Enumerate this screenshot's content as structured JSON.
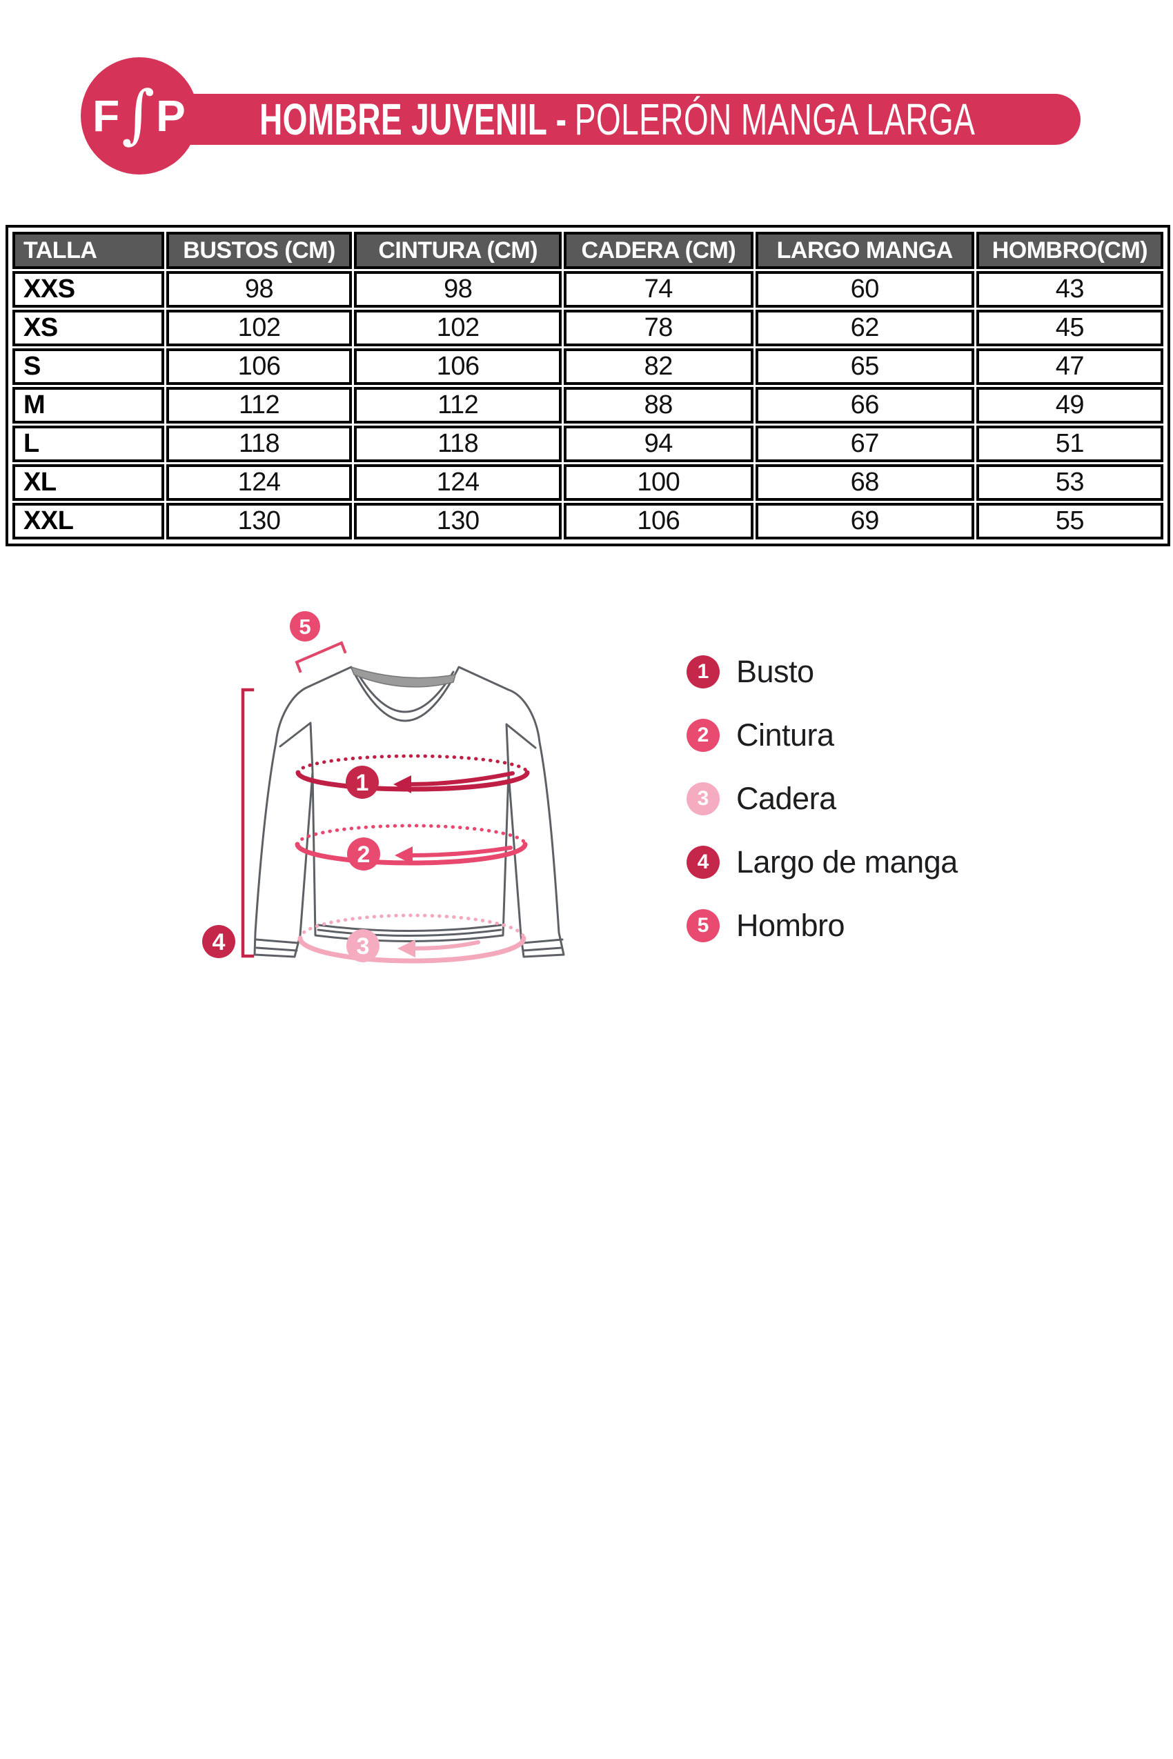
{
  "header": {
    "logo_parts": [
      "F",
      "∫",
      "P"
    ],
    "title_bold": "HOMBRE JUVENIL -",
    "title_regular": "POLERÓN MANGA LARGA",
    "brand_color": "#d63358"
  },
  "size_table": {
    "columns": [
      "TALLA",
      "BUSTOS (CM)",
      "CINTURA (CM)",
      "CADERA (CM)",
      "LARGO MANGA",
      "HOMBRO(CM)"
    ],
    "rows": [
      [
        "XXS",
        "98",
        "98",
        "74",
        "60",
        "43"
      ],
      [
        "XS",
        "102",
        "102",
        "78",
        "62",
        "45"
      ],
      [
        "S",
        "106",
        "106",
        "82",
        "65",
        "47"
      ],
      [
        "M",
        "112",
        "112",
        "88",
        "66",
        "49"
      ],
      [
        "L",
        "118",
        "118",
        "94",
        "67",
        "51"
      ],
      [
        "XL",
        "124",
        "124",
        "100",
        "68",
        "53"
      ],
      [
        "XXL",
        "130",
        "130",
        "106",
        "69",
        "55"
      ]
    ],
    "header_bg": "#595959",
    "header_text_color": "#ffffff"
  },
  "diagram": {
    "badges": [
      {
        "number": "1",
        "color": "#c5274a"
      },
      {
        "number": "2",
        "color": "#e84a70"
      },
      {
        "number": "3",
        "color": "#f5abc0"
      },
      {
        "number": "4",
        "color": "#c5274a"
      },
      {
        "number": "5",
        "color": "#e84a70"
      }
    ],
    "measure_colors": {
      "bust": "#bf1f44",
      "waist": "#e8476e",
      "hip": "#f3a8bc",
      "sleeve_line": "#c32648",
      "shoulder_bracket": "#e0486b"
    },
    "legend": [
      {
        "number": "1",
        "label": "Busto"
      },
      {
        "number": "2",
        "label": "Cintura"
      },
      {
        "number": "3",
        "label": "Cadera"
      },
      {
        "number": "4",
        "label": "Largo de manga"
      },
      {
        "number": "5",
        "label": "Hombro"
      }
    ]
  }
}
